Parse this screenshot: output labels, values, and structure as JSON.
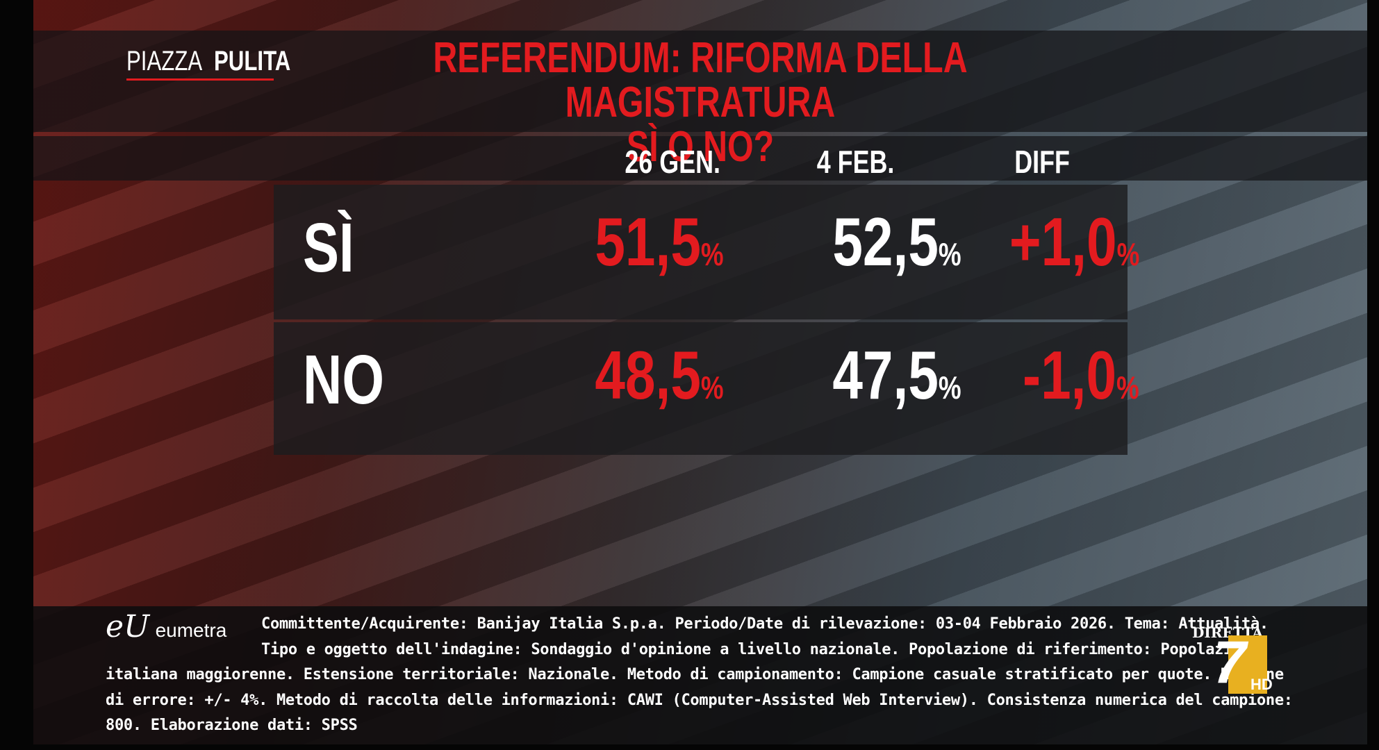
{
  "header": {
    "logo": {
      "part1": "PIAZZA",
      "part2": "PULITA"
    },
    "title_line1": "REFERENDUM: RIFORMA DELLA MAGISTRATURA",
    "title_line2": "SÌ O NO?"
  },
  "table": {
    "columns": [
      "26 GEN.",
      "4 FEB.",
      "DIFF"
    ],
    "rows": [
      {
        "label": "SÌ",
        "cells": [
          {
            "value": "51,5",
            "unit": "%"
          },
          {
            "value": "52,5",
            "unit": "%"
          },
          {
            "value": "+1,0",
            "unit": "%"
          }
        ]
      },
      {
        "label": "NO",
        "cells": [
          {
            "value": "48,5",
            "unit": "%"
          },
          {
            "value": "47,5",
            "unit": "%"
          },
          {
            "value": "-1,0",
            "unit": "%"
          }
        ]
      }
    ]
  },
  "footer": {
    "logo_mark": "eU",
    "logo_text": "eumetra",
    "note": "Committente/Acquirente: Banijay Italia S.p.a. Periodo/Date di rilevazione: 03-04 Febbraio 2026. Tema: Attualità. Tipo e oggetto dell'indagine: Sondaggio d'opinione a livello nazionale. Popolazione di riferimento: Popolazione italiana maggiorenne. Estensione territoriale: Nazionale. Metodo di campionamento: Campione casuale stratificato per quote. Margine di errore: +/- 4%. Metodo di raccolta delle informazioni: CAWI (Computer-Assisted Web Interview). Consistenza numerica del campione: 800. Elaborazione dati: SPSS"
  },
  "channel": {
    "live": "DIRETTA",
    "number": "7",
    "quality": "HD"
  }
}
